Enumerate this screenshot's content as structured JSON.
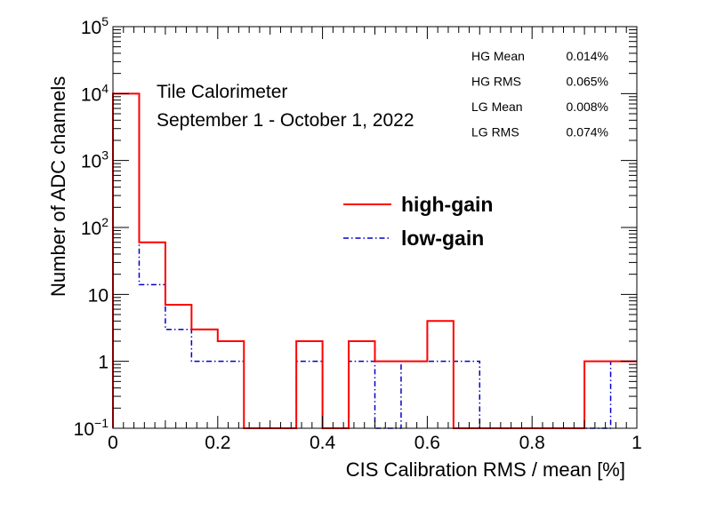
{
  "chart_data": {
    "type": "histogram",
    "xlabel": "CIS Calibration RMS / mean [%]",
    "ylabel": "Number of ADC channels",
    "xlim": [
      0,
      1
    ],
    "ylim": [
      0.1,
      100000
    ],
    "y_scale": "log",
    "grid": false,
    "bin_edges": [
      0,
      0.05,
      0.1,
      0.15,
      0.2,
      0.25,
      0.3,
      0.35,
      0.4,
      0.45,
      0.5,
      0.55,
      0.6,
      0.65,
      0.7,
      0.75,
      0.8,
      0.85,
      0.9,
      0.95,
      1.0
    ],
    "x_tick_labels": [
      "0",
      "0.2",
      "0.4",
      "0.6",
      "0.8",
      "1"
    ],
    "y_tick_labels": [
      {
        "base": "10",
        "exp": "5"
      },
      {
        "base": "10",
        "exp": "4"
      },
      {
        "base": "10",
        "exp": "3"
      },
      {
        "base": "10",
        "exp": "2"
      },
      {
        "base": "10",
        "exp": ""
      },
      {
        "base": "1",
        "exp": ""
      },
      {
        "base": "10",
        "exp": "−1"
      }
    ],
    "series": [
      {
        "name": "high-gain",
        "color": "#ff0000",
        "line_style": "solid",
        "values": [
          10000,
          60,
          7,
          3,
          2,
          0,
          0,
          2,
          0,
          2,
          1,
          1,
          4,
          0,
          0,
          0,
          0,
          0,
          1,
          1
        ]
      },
      {
        "name": "low-gain",
        "color": "#0000cc",
        "line_style": "dash-dot",
        "values": [
          10000,
          14,
          3,
          1,
          1,
          0,
          0,
          1,
          0,
          1,
          0,
          1,
          1,
          1,
          0,
          0,
          0,
          0,
          0,
          1
        ]
      }
    ],
    "legend_position": "center-right",
    "annotations": {
      "title_line1": "Tile Calorimeter",
      "title_line2": "September 1 - October 1, 2022"
    },
    "stats": [
      {
        "label": "HG Mean",
        "value": "0.014%"
      },
      {
        "label": "HG RMS",
        "value": "0.065%"
      },
      {
        "label": "LG Mean",
        "value": "0.008%"
      },
      {
        "label": "LG RMS",
        "value": "0.074%"
      }
    ]
  }
}
